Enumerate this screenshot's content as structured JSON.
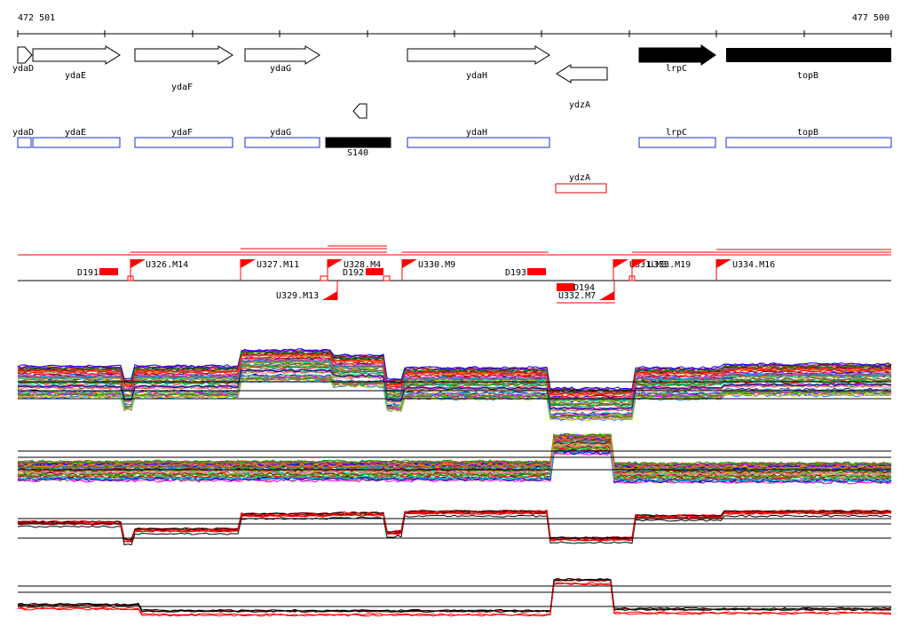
{
  "coord_start": "472 501",
  "coord_end": "477 500",
  "colors": {
    "gene_outline": "#000000",
    "annotation_box": "#1a2fd1",
    "antisense_box": "#e00000",
    "promoter": "#ff0000",
    "baseline": "#000000"
  },
  "genes": [
    {
      "name": "ydaD",
      "strand": "+",
      "filled": false
    },
    {
      "name": "ydaE",
      "strand": "+",
      "filled": false
    },
    {
      "name": "ydaF",
      "strand": "+",
      "filled": false
    },
    {
      "name": "ydaG",
      "strand": "+",
      "filled": false
    },
    {
      "name": "ydaH",
      "strand": "+",
      "filled": false
    },
    {
      "name": "ydzA",
      "strand": "-",
      "filled": false
    },
    {
      "name": "lrpC",
      "strand": "+",
      "filled": true
    },
    {
      "name": "topB",
      "strand": "+",
      "filled": true
    }
  ],
  "small_feature": {
    "strand": "-"
  },
  "annotations": [
    {
      "name": "ydaD",
      "kind": "sense"
    },
    {
      "name": "ydaE",
      "kind": "sense"
    },
    {
      "name": "ydaF",
      "kind": "sense"
    },
    {
      "name": "ydaG",
      "kind": "sense"
    },
    {
      "name": "S140",
      "kind": "filled"
    },
    {
      "name": "ydaH",
      "kind": "sense"
    },
    {
      "name": "lrpC",
      "kind": "sense"
    },
    {
      "name": "topB",
      "kind": "sense"
    },
    {
      "name": "ydzA",
      "kind": "antisense"
    }
  ],
  "transcription_features": [
    {
      "name": "D191",
      "type": "down-shift"
    },
    {
      "name": "U326.M14",
      "type": "up-shift"
    },
    {
      "name": "U327.M11",
      "type": "up-shift"
    },
    {
      "name": "U328.M4",
      "type": "up-shift"
    },
    {
      "name": "D192",
      "type": "down-shift"
    },
    {
      "name": "U329.M13",
      "type": "up-shift"
    },
    {
      "name": "U330.M9",
      "type": "up-shift"
    },
    {
      "name": "D193",
      "type": "down-shift"
    },
    {
      "name": "D194",
      "type": "down-shift"
    },
    {
      "name": "U332.M7",
      "type": "up-shift"
    },
    {
      "name": "U331.M3",
      "type": "up-shift"
    },
    {
      "name": "U333.M19",
      "type": "up-shift"
    },
    {
      "name": "U334.M16",
      "type": "up-shift"
    }
  ],
  "expression_panels": [
    {
      "id": "sense-all",
      "style": "multicolor"
    },
    {
      "id": "antisense-all",
      "style": "multicolor"
    },
    {
      "id": "sense-selected",
      "style": "black-red"
    },
    {
      "id": "antisense-selected",
      "style": "black-red"
    }
  ]
}
